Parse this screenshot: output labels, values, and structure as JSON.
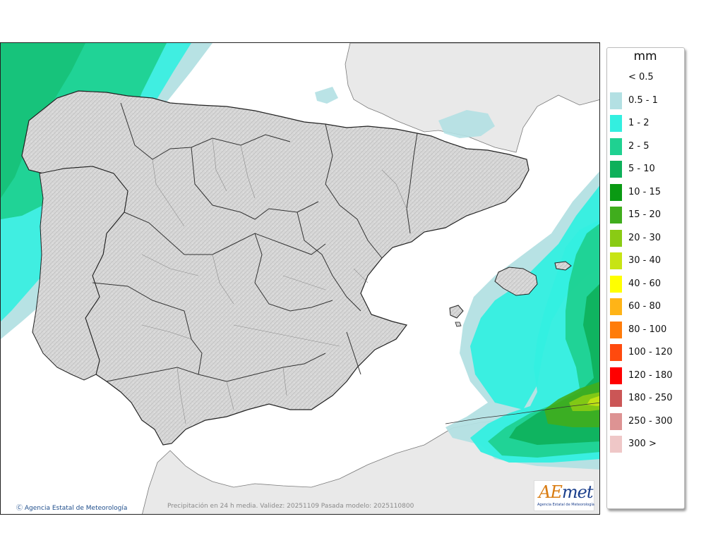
{
  "map": {
    "copyright": "Agencia Estatal de Meteorología",
    "caption": "Precipitación en 24 h media. Validez: 20251109 Pasada modelo: 2025110800"
  },
  "logo": {
    "brand_a": "AE",
    "brand_rest": "met",
    "subtitle": "Agencia Estatal de Meteorología"
  },
  "legend": {
    "unit": "mm",
    "items": [
      {
        "label": "< 0.5",
        "color": "#ffffff"
      },
      {
        "label": "0.5 - 1",
        "color": "#b3e0e3"
      },
      {
        "label": "1 - 2",
        "color": "#33efe0"
      },
      {
        "label": "2 - 5",
        "color": "#1fd191"
      },
      {
        "label": "5 - 10",
        "color": "#0db05a"
      },
      {
        "label": "10 - 15",
        "color": "#0a9a13"
      },
      {
        "label": "15 - 20",
        "color": "#40ad1d"
      },
      {
        "label": "20 - 30",
        "color": "#8acb14"
      },
      {
        "label": "30 - 40",
        "color": "#c7e414"
      },
      {
        "label": "40 - 60",
        "color": "#ffff00"
      },
      {
        "label": "60 - 80",
        "color": "#ffb417"
      },
      {
        "label": "80 - 100",
        "color": "#ff7c0a"
      },
      {
        "label": "100 - 120",
        "color": "#ff4a0e"
      },
      {
        "label": "120 - 180",
        "color": "#ff0000"
      },
      {
        "label": "180 - 250",
        "color": "#cb5656"
      },
      {
        "label": "250 - 300",
        "color": "#dd9393"
      },
      {
        "label": "300 >",
        "color": "#efc7c7"
      }
    ]
  }
}
